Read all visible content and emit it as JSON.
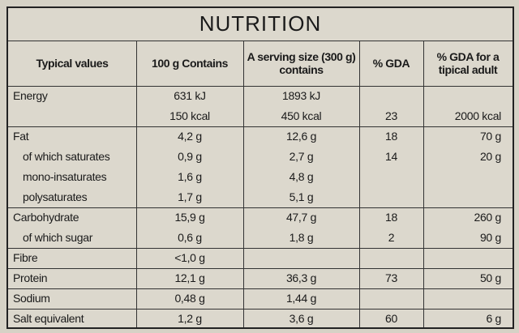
{
  "title": "NUTRITION",
  "table": {
    "header": [
      "Typical values",
      "100 g Contains",
      "A serving size (300 g) contains",
      "% GDA",
      "% GDA for a tipical adult"
    ],
    "groups": [
      [
        [
          "Energy",
          "631 kJ",
          "1893 kJ",
          null,
          null
        ],
        [
          null,
          "150 kcal",
          "450 kcal",
          "23",
          "2000 kcal"
        ]
      ],
      [
        [
          "Fat",
          "4,2 g",
          "12,6 g",
          "18",
          "70 g"
        ],
        [
          "of which saturates",
          "0,9 g",
          "2,7 g",
          "14",
          "20 g"
        ],
        [
          "mono-insaturates",
          "1,6 g",
          "4,8 g",
          null,
          null
        ],
        [
          "polysaturates",
          "1,7 g",
          "5,1 g",
          null,
          null
        ]
      ],
      [
        [
          "Carbohydrate",
          "15,9 g",
          "47,7 g",
          "18",
          "260 g"
        ],
        [
          "of which sugar",
          "0,6 g",
          "1,8 g",
          "2",
          "90 g"
        ]
      ],
      [
        [
          "Fibre",
          "<1,0 g",
          null,
          null,
          null
        ]
      ],
      [
        [
          "Protein",
          "12,1 g",
          "36,3 g",
          "73",
          "50 g"
        ]
      ],
      [
        [
          "Sodium",
          "0,48 g",
          "1,44 g",
          null,
          null
        ]
      ],
      [
        [
          "Salt equivalent",
          "1,2 g",
          "3,6 g",
          "60",
          "6 g"
        ]
      ]
    ]
  }
}
